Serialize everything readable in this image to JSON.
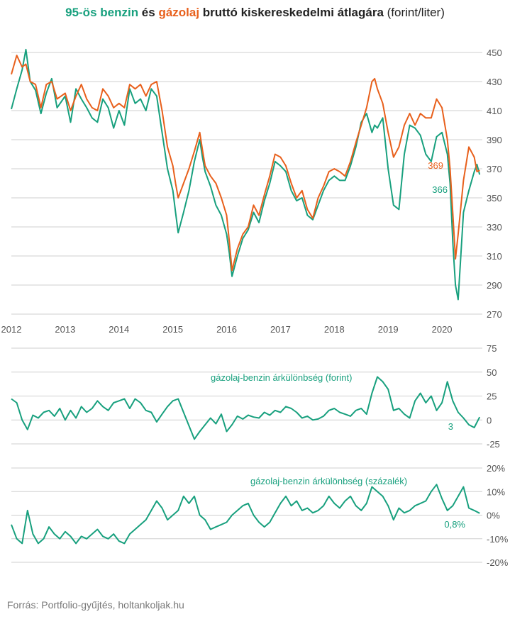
{
  "title": {
    "part1": "95-ös benzin",
    "part2": " és ",
    "part3": "gázolaj",
    "part4": " bruttó kiskereskedelmi átlagára",
    "part5": " (forint/liter)"
  },
  "source": "Forrás: Portfolio-gyűjtés, holtankoljak.hu",
  "colors": {
    "benzin": "#18a07e",
    "gazolaj": "#e8601c",
    "grid": "#cfcfcf",
    "text": "#555555"
  },
  "chart_data": [
    {
      "type": "line",
      "title": "95-ös benzin és gázolaj bruttó kiskereskedelmi átlagára (forint/liter)",
      "x_ticks": [
        "2012",
        "2013",
        "2014",
        "2015",
        "2016",
        "2017",
        "2018",
        "2019",
        "2020"
      ],
      "y_ticks": [
        "450",
        "430",
        "410",
        "390",
        "370",
        "350",
        "330",
        "310",
        "290",
        "270"
      ],
      "ylim": [
        270,
        450
      ],
      "xlim": [
        2012.0,
        2020.75
      ],
      "series": [
        {
          "name": "95-ös benzin",
          "color": "#18a07e",
          "x": [
            2012.0,
            2012.1,
            2012.2,
            2012.27,
            2012.35,
            2012.45,
            2012.55,
            2012.65,
            2012.75,
            2012.85,
            2013.0,
            2013.1,
            2013.2,
            2013.3,
            2013.4,
            2013.5,
            2013.6,
            2013.7,
            2013.8,
            2013.9,
            2014.0,
            2014.1,
            2014.2,
            2014.3,
            2014.4,
            2014.5,
            2014.6,
            2014.7,
            2014.8,
            2014.9,
            2015.0,
            2015.05,
            2015.1,
            2015.2,
            2015.3,
            2015.4,
            2015.5,
            2015.55,
            2015.6,
            2015.7,
            2015.8,
            2015.9,
            2016.0,
            2016.05,
            2016.1,
            2016.2,
            2016.3,
            2016.4,
            2016.5,
            2016.6,
            2016.7,
            2016.8,
            2016.9,
            2017.0,
            2017.1,
            2017.2,
            2017.3,
            2017.4,
            2017.5,
            2017.6,
            2017.7,
            2017.8,
            2017.9,
            2018.0,
            2018.1,
            2018.2,
            2018.3,
            2018.4,
            2018.5,
            2018.6,
            2018.7,
            2018.75,
            2018.8,
            2018.9,
            2019.0,
            2019.1,
            2019.2,
            2019.3,
            2019.4,
            2019.5,
            2019.6,
            2019.7,
            2019.8,
            2019.9,
            2020.0,
            2020.1,
            2020.15,
            2020.2,
            2020.25,
            2020.3,
            2020.4,
            2020.5,
            2020.6,
            2020.65,
            2020.7
          ],
          "y": [
            411,
            425,
            438,
            452,
            430,
            424,
            408,
            422,
            432,
            412,
            420,
            402,
            425,
            418,
            412,
            405,
            402,
            418,
            412,
            398,
            410,
            400,
            425,
            415,
            418,
            410,
            425,
            420,
            395,
            370,
            355,
            340,
            326,
            340,
            355,
            375,
            390,
            378,
            368,
            358,
            345,
            338,
            325,
            312,
            296,
            310,
            322,
            328,
            340,
            333,
            348,
            360,
            375,
            372,
            368,
            355,
            348,
            350,
            338,
            335,
            345,
            355,
            362,
            365,
            362,
            362,
            372,
            385,
            402,
            408,
            395,
            400,
            398,
            405,
            370,
            345,
            342,
            380,
            400,
            398,
            393,
            380,
            375,
            392,
            395,
            380,
            360,
            320,
            290,
            280,
            340,
            355,
            368,
            373,
            366
          ]
        },
        {
          "name": "gázolaj",
          "color": "#e8601c",
          "x": [
            2012.0,
            2012.1,
            2012.2,
            2012.27,
            2012.35,
            2012.45,
            2012.55,
            2012.65,
            2012.75,
            2012.85,
            2013.0,
            2013.1,
            2013.2,
            2013.3,
            2013.4,
            2013.5,
            2013.6,
            2013.7,
            2013.8,
            2013.9,
            2014.0,
            2014.1,
            2014.2,
            2014.3,
            2014.4,
            2014.5,
            2014.6,
            2014.7,
            2014.8,
            2014.9,
            2015.0,
            2015.05,
            2015.1,
            2015.2,
            2015.3,
            2015.4,
            2015.5,
            2015.55,
            2015.6,
            2015.7,
            2015.8,
            2015.9,
            2016.0,
            2016.05,
            2016.1,
            2016.2,
            2016.3,
            2016.4,
            2016.5,
            2016.6,
            2016.7,
            2016.8,
            2016.9,
            2017.0,
            2017.1,
            2017.2,
            2017.3,
            2017.4,
            2017.5,
            2017.6,
            2017.7,
            2017.8,
            2017.9,
            2018.0,
            2018.1,
            2018.2,
            2018.3,
            2018.4,
            2018.5,
            2018.6,
            2018.7,
            2018.75,
            2018.8,
            2018.9,
            2019.0,
            2019.1,
            2019.2,
            2019.3,
            2019.4,
            2019.5,
            2019.6,
            2019.7,
            2019.8,
            2019.9,
            2020.0,
            2020.1,
            2020.15,
            2020.2,
            2020.25,
            2020.3,
            2020.4,
            2020.5,
            2020.6,
            2020.65,
            2020.7
          ],
          "y": [
            435,
            448,
            440,
            442,
            430,
            428,
            412,
            428,
            430,
            418,
            422,
            410,
            420,
            428,
            418,
            412,
            410,
            425,
            420,
            412,
            415,
            412,
            428,
            425,
            428,
            420,
            428,
            430,
            410,
            385,
            372,
            360,
            350,
            360,
            370,
            382,
            395,
            383,
            372,
            365,
            360,
            350,
            338,
            320,
            300,
            315,
            325,
            330,
            345,
            338,
            352,
            365,
            380,
            378,
            372,
            360,
            350,
            355,
            342,
            336,
            350,
            358,
            368,
            370,
            368,
            365,
            375,
            388,
            400,
            412,
            430,
            432,
            425,
            415,
            395,
            378,
            385,
            400,
            408,
            400,
            408,
            405,
            405,
            418,
            412,
            390,
            370,
            340,
            308,
            325,
            362,
            385,
            378,
            368,
            369
          ]
        }
      ],
      "end_labels": {
        "gazolaj": "369",
        "benzin": "366"
      }
    },
    {
      "type": "line",
      "title": "gázolaj-benzin árkülönbség (forint)",
      "y_ticks": [
        "75",
        "50",
        "25",
        "0",
        "-25"
      ],
      "ylim": [
        -25,
        75
      ],
      "xlim": [
        2012.0,
        2020.75
      ],
      "series": [
        {
          "name": "gázolaj-benzin árkülönbség (forint)",
          "color": "#18a07e",
          "x": [
            2012.0,
            2012.1,
            2012.2,
            2012.3,
            2012.4,
            2012.5,
            2012.6,
            2012.7,
            2012.8,
            2012.9,
            2013.0,
            2013.1,
            2013.2,
            2013.3,
            2013.4,
            2013.5,
            2013.6,
            2013.7,
            2013.8,
            2013.9,
            2014.0,
            2014.1,
            2014.2,
            2014.3,
            2014.4,
            2014.5,
            2014.6,
            2014.7,
            2014.8,
            2014.9,
            2015.0,
            2015.1,
            2015.2,
            2015.3,
            2015.4,
            2015.5,
            2015.6,
            2015.7,
            2015.8,
            2015.9,
            2016.0,
            2016.1,
            2016.2,
            2016.3,
            2016.4,
            2016.5,
            2016.6,
            2016.7,
            2016.8,
            2016.9,
            2017.0,
            2017.1,
            2017.2,
            2017.3,
            2017.4,
            2017.5,
            2017.6,
            2017.7,
            2017.8,
            2017.9,
            2018.0,
            2018.1,
            2018.2,
            2018.3,
            2018.4,
            2018.5,
            2018.6,
            2018.7,
            2018.8,
            2018.9,
            2019.0,
            2019.1,
            2019.2,
            2019.3,
            2019.4,
            2019.5,
            2019.6,
            2019.7,
            2019.8,
            2019.9,
            2020.0,
            2020.1,
            2020.2,
            2020.3,
            2020.4,
            2020.5,
            2020.6,
            2020.7
          ],
          "y": [
            22,
            18,
            0,
            -10,
            5,
            2,
            8,
            10,
            4,
            12,
            0,
            10,
            2,
            14,
            8,
            12,
            20,
            14,
            10,
            18,
            20,
            22,
            12,
            22,
            18,
            10,
            8,
            -2,
            6,
            14,
            20,
            22,
            8,
            -6,
            -20,
            -12,
            -5,
            2,
            -4,
            6,
            -12,
            -5,
            4,
            1,
            5,
            3,
            2,
            8,
            5,
            10,
            8,
            14,
            12,
            8,
            2,
            4,
            0,
            1,
            4,
            10,
            12,
            8,
            6,
            4,
            10,
            12,
            6,
            28,
            45,
            40,
            32,
            10,
            12,
            6,
            2,
            20,
            28,
            18,
            25,
            10,
            18,
            40,
            20,
            8,
            2,
            -5,
            -8,
            3
          ]
        }
      ],
      "annotation": "gázolaj-benzin árkülönbség (forint)",
      "end_label": "3"
    },
    {
      "type": "line",
      "title": "gázolaj-benzin árkülönbség (százalék)",
      "y_ticks": [
        "20%",
        "10%",
        "0%",
        "-10%",
        "-20%"
      ],
      "ylim": [
        -20,
        20
      ],
      "xlim": [
        2012.0,
        2020.75
      ],
      "series": [
        {
          "name": "gázolaj-benzin árkülönbség (százalék)",
          "color": "#18a07e",
          "x": [
            2012.0,
            2012.1,
            2012.2,
            2012.3,
            2012.4,
            2012.5,
            2012.6,
            2012.7,
            2012.8,
            2012.9,
            2013.0,
            2013.1,
            2013.2,
            2013.3,
            2013.4,
            2013.5,
            2013.6,
            2013.7,
            2013.8,
            2013.9,
            2014.0,
            2014.1,
            2014.2,
            2014.3,
            2014.4,
            2014.5,
            2014.6,
            2014.7,
            2014.8,
            2014.9,
            2015.0,
            2015.1,
            2015.2,
            2015.3,
            2015.4,
            2015.5,
            2015.6,
            2015.7,
            2015.8,
            2015.9,
            2016.0,
            2016.1,
            2016.2,
            2016.3,
            2016.4,
            2016.5,
            2016.6,
            2016.7,
            2016.8,
            2016.9,
            2017.0,
            2017.1,
            2017.2,
            2017.3,
            2017.4,
            2017.5,
            2017.6,
            2017.7,
            2017.8,
            2017.9,
            2018.0,
            2018.1,
            2018.2,
            2018.3,
            2018.4,
            2018.5,
            2018.6,
            2018.7,
            2018.8,
            2018.9,
            2019.0,
            2019.1,
            2019.2,
            2019.3,
            2019.4,
            2019.5,
            2019.6,
            2019.7,
            2019.8,
            2019.9,
            2020.0,
            2020.1,
            2020.2,
            2020.3,
            2020.4,
            2020.5,
            2020.6,
            2020.7
          ],
          "y": [
            -4,
            -10,
            -12,
            2,
            -8,
            -12,
            -10,
            -5,
            -8,
            -10,
            -7,
            -9,
            -12,
            -9,
            -10,
            -8,
            -6,
            -9,
            -10,
            -8,
            -11,
            -12,
            -8,
            -6,
            -4,
            -2,
            2,
            6,
            3,
            -2,
            0,
            2,
            8,
            5,
            8,
            0,
            -2,
            -6,
            -5,
            -4,
            -3,
            0,
            2,
            4,
            5,
            0,
            -3,
            -5,
            -3,
            1,
            5,
            8,
            4,
            6,
            2,
            3,
            1,
            2,
            4,
            8,
            5,
            3,
            6,
            8,
            4,
            2,
            5,
            12,
            10,
            8,
            4,
            -2,
            3,
            1,
            2,
            4,
            5,
            6,
            10,
            13,
            7,
            2,
            4,
            8,
            12,
            3,
            2,
            0.8
          ]
        }
      ],
      "annotation": "gázolaj-benzin árkülönbség (százalék)",
      "end_label": "0,8%"
    }
  ]
}
